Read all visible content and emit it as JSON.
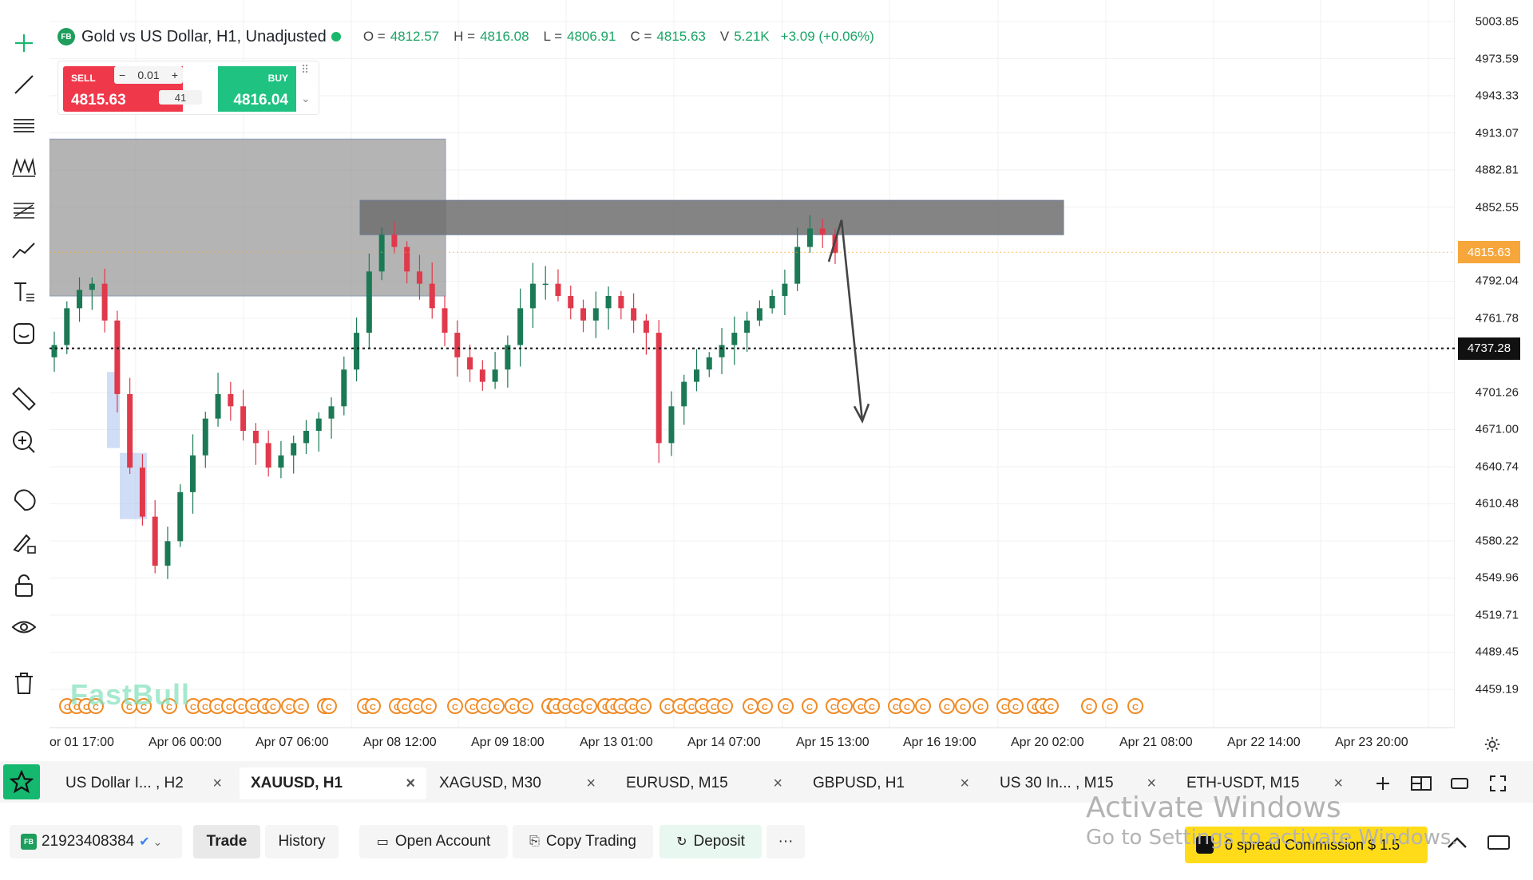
{
  "symbol": {
    "badge": "FB",
    "title": "Gold vs US Dollar, H1, Unadjusted",
    "ohlc": [
      {
        "label": "O =",
        "value": "4812.57"
      },
      {
        "label": "H =",
        "value": "4816.08"
      },
      {
        "label": "L =",
        "value": "4806.91"
      },
      {
        "label": "C =",
        "value": "4815.63"
      },
      {
        "label": "V",
        "value": "5.21K"
      }
    ],
    "change": "+3.09 (+0.06%)"
  },
  "trade_widget": {
    "sell_label": "SELL",
    "sell_price": "4815.63",
    "buy_label": "BUY",
    "buy_price": "4816.04",
    "lot": "0.01",
    "lot_minus": "−",
    "lot_plus": "+",
    "spread": "41"
  },
  "price_scale": {
    "ticks": [
      "5003.85",
      "4973.59",
      "4943.33",
      "4913.07",
      "4882.81",
      "4852.55",
      "4792.04",
      "4761.78",
      "4701.26",
      "4671.00",
      "4640.74",
      "4610.48",
      "4580.22",
      "4549.96",
      "4519.71",
      "4489.45",
      "4459.19"
    ],
    "current_price": "4815.63",
    "line_price": "4737.28"
  },
  "time_axis": [
    "or 01 17:00",
    "Apr 06 00:00",
    "Apr 07 06:00",
    "Apr 08 12:00",
    "Apr 09 18:00",
    "Apr 13 01:00",
    "Apr 14 07:00",
    "Apr 15 13:00",
    "Apr 16 19:00",
    "Apr 20 02:00",
    "Apr 21 08:00",
    "Apr 22 14:00",
    "Apr 23 20:00"
  ],
  "watermark": "FastBull",
  "colors": {
    "bull": "#1b7a55",
    "bear": "#e0394b",
    "accent": "#14b86e",
    "current_price_bg": "#f7a63b",
    "line_price_bg": "#111111",
    "event_icon": "#f08a24"
  },
  "chart_data": {
    "type": "candlestick",
    "x_range": [
      "Apr 01 17:00",
      "Apr 23 20:00"
    ],
    "ylim": [
      4440,
      5015
    ],
    "closes_approx": [
      4740,
      4770,
      4785,
      4790,
      4760,
      4700,
      4640,
      4600,
      4560,
      4580,
      4620,
      4650,
      4680,
      4700,
      4690,
      4670,
      4660,
      4640,
      4650,
      4660,
      4670,
      4680,
      4690,
      4720,
      4750,
      4800,
      4830,
      4820,
      4800,
      4790,
      4770,
      4750,
      4730,
      4720,
      4710,
      4720,
      4740,
      4770,
      4790,
      4790,
      4780,
      4770,
      4760,
      4770,
      4780,
      4770,
      4760,
      4750,
      4660,
      4690,
      4710,
      4720,
      4730,
      4740,
      4750,
      4760,
      4770,
      4780,
      4790,
      4820,
      4835,
      4830,
      4815
    ],
    "overlays": {
      "zones": [
        "grey supply zone Apr 01–Apr 08 (≈4780–4908)",
        "dark supply zone Apr 08–Apr 16 (≈4830–4858)"
      ],
      "horizontal_line": "4737.28",
      "arrow": "projected drop from ≈4840 to ≈4680"
    }
  },
  "tabs": [
    {
      "label": "US Dollar I... , H2",
      "active": false
    },
    {
      "label": "XAUUSD, H1",
      "active": true
    },
    {
      "label": "XAGUSD, M30",
      "active": false
    },
    {
      "label": "EURUSD, M15",
      "active": false
    },
    {
      "label": "GBPUSD, H1",
      "active": false
    },
    {
      "label": "US 30 In... , M15",
      "active": false
    },
    {
      "label": "ETH-USDT, M15",
      "active": false
    }
  ],
  "tab_close": "×",
  "bottom": {
    "badge": "FB",
    "account": "21923408384",
    "trade": "Trade",
    "history": "History",
    "open_account": "Open Account",
    "copy_trading": "Copy Trading",
    "deposit": "Deposit",
    "more": "···",
    "promo": "0 spread Commission $ 1.5"
  },
  "os_overlay": {
    "title": "Activate Windows",
    "subtitle": "Go to Settings to activate Windows."
  },
  "left_toolbar": [
    "crosshair-icon",
    "trend-line-icon",
    "horizontal-lines-icon",
    "pattern-icon",
    "fib-icon",
    "polyline-icon",
    "text-icon",
    "sticker-icon",
    "ruler-icon",
    "zoom-in-icon",
    "magnet-icon",
    "brush-lock-icon",
    "unlock-icon",
    "eye-icon",
    "trash-icon"
  ]
}
